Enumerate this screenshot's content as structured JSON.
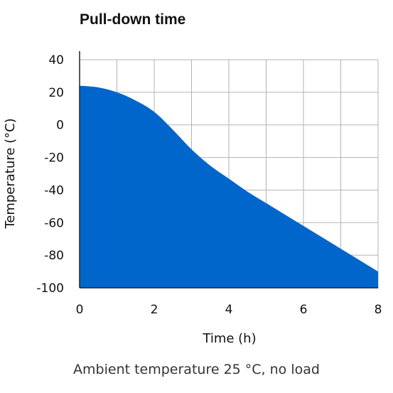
{
  "chart_data": {
    "type": "area",
    "title": "Pull-down time",
    "xlabel": "Time (h)",
    "ylabel": "Temperature (°C)",
    "xlim": [
      0,
      8
    ],
    "ylim": [
      -100,
      40
    ],
    "x_ticks": [
      0,
      2,
      4,
      6,
      8
    ],
    "y_ticks": [
      40,
      20,
      0,
      -20,
      -40,
      -60,
      -80,
      -100
    ],
    "x_grid_step": 1,
    "y_grid_step": 20,
    "grid": true,
    "fill_color": "#0066CC",
    "series": [
      {
        "x": [
          0,
          0.5,
          1.0,
          1.5,
          2.0,
          2.5,
          3.0,
          3.5,
          4.0,
          4.5,
          5.0,
          5.5,
          6.0,
          6.5,
          7.0,
          7.5,
          8.0
        ],
        "values": [
          24,
          23,
          20,
          15,
          8,
          -3,
          -15,
          -25,
          -33,
          -41,
          -48,
          -55,
          -62,
          -69,
          -76,
          -83,
          -90
        ]
      }
    ],
    "caption": "Ambient temperature 25 °C, no load"
  }
}
